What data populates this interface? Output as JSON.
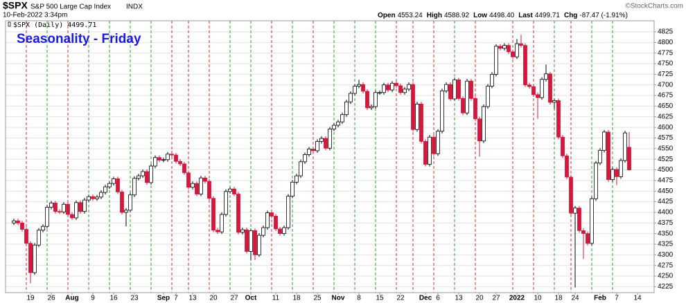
{
  "chart_data": {
    "type": "candlestick",
    "title": "$SPX",
    "subtitle": "S&P 500 Large Cap Index",
    "exchange": "INDX",
    "date": "10-Feb-2022 3:34pm",
    "quote": [
      {
        "label": "Open",
        "value": "4553.24"
      },
      {
        "label": "High",
        "value": "4588.92"
      },
      {
        "label": "Low",
        "value": "4498.40"
      },
      {
        "label": "Last",
        "value": "4499.71"
      },
      {
        "label": "Chg",
        "value": "-87.47 (-1.91%)"
      }
    ],
    "credit": "©StockCharts.com",
    "annotation": "Seasonality - Friday",
    "grid": true,
    "up_color": "#000000",
    "down_color": "#d8163c",
    "friday_up_color": "#2e9b2e",
    "friday_down_color": "#d42a2a",
    "ylim": [
      4211,
      4851
    ],
    "yticks": [
      4225,
      4250,
      4275,
      4300,
      4325,
      4350,
      4375,
      4400,
      4425,
      4450,
      4475,
      4500,
      4525,
      4550,
      4575,
      4600,
      4625,
      4650,
      4675,
      4700,
      4725,
      4750,
      4775,
      4800,
      4825
    ],
    "categories": [
      null,
      null,
      null,
      null,
      "19",
      null,
      null,
      null,
      null,
      "26",
      null,
      null,
      null,
      null,
      "Aug",
      null,
      null,
      null,
      null,
      "9",
      null,
      null,
      null,
      null,
      "16",
      null,
      null,
      null,
      null,
      "23",
      null,
      null,
      null,
      null,
      null,
      null,
      "Sep",
      null,
      null,
      "7",
      null,
      null,
      null,
      "13",
      null,
      null,
      null,
      null,
      "20",
      null,
      null,
      null,
      null,
      "27",
      null,
      null,
      null,
      "Oct",
      null,
      null,
      null,
      null,
      null,
      "11",
      null,
      null,
      null,
      null,
      "18",
      null,
      null,
      null,
      null,
      "25",
      null,
      null,
      null,
      null,
      "Nov",
      null,
      null,
      null,
      null,
      "8",
      null,
      null,
      null,
      null,
      "15",
      null,
      null,
      null,
      null,
      "22",
      null,
      null,
      null,
      null,
      null,
      "Dec",
      null,
      null,
      "6",
      null,
      null,
      null,
      null,
      "13",
      null,
      null,
      null,
      null,
      "20",
      null,
      null,
      null,
      "27",
      null,
      null,
      null,
      null,
      "2022",
      null,
      null,
      null,
      null,
      "10",
      null,
      null,
      null,
      null,
      "18",
      null,
      null,
      null,
      "24",
      null,
      null,
      null,
      null,
      null,
      "Feb",
      null,
      null,
      null,
      "7",
      null,
      null,
      null,
      null,
      "14"
    ],
    "series": [
      {
        "name": "$SPX (Daily) 4499.71",
        "open": [
          4375,
          4380,
          4375,
          4360,
          4327,
          4258,
          4323,
          4358,
          4367,
          4412,
          4422,
          4402,
          4401,
          4419,
          4395,
          4387,
          4423,
          4402,
          4429,
          4437,
          4432,
          4436,
          4447,
          4460,
          4468,
          4479,
          4448,
          4400,
          4405,
          4441,
          4480,
          4486,
          4496,
          4470,
          4509,
          4529,
          4523,
          4524,
          4537,
          4535,
          4520,
          4514,
          4493,
          4459,
          4468,
          4443,
          4481,
          4473,
          4433,
          4358,
          4354,
          4395,
          4449,
          4455,
          4443,
          4353,
          4359,
          4308,
          4357,
          4300,
          4346,
          4364,
          4399,
          4391,
          4361,
          4350,
          4364,
          4438,
          4471,
          4486,
          4519,
          4536,
          4549,
          4545,
          4567,
          4574,
          4551,
          4596,
          4605,
          4613,
          4630,
          4660,
          4680,
          4697,
          4701,
          4685,
          4646,
          4649,
          4682,
          4682,
          4700,
          4688,
          4704,
          4698,
          4682,
          4690,
          4701,
          4595,
          4655,
          4567,
          4513,
          4577,
          4538,
          4591,
          4686,
          4701,
          4667,
          4712,
          4668,
          4634,
          4709,
          4668,
          4620,
          4568,
          4649,
          4697,
          4725,
          4791,
          4786,
          4793,
          4778,
          4766,
          4797,
          4793,
          4700,
          4696,
          4677,
          4670,
          4713,
          4726,
          4659,
          4663,
          4577,
          4533,
          4483,
          4398,
          4410,
          4357,
          4350,
          4327,
          4432,
          4516,
          4546,
          4589,
          4477,
          4501,
          4484,
          4522,
          4553.24,
          null,
          null
        ],
        "high": [
          4385,
          4385,
          4380,
          4365,
          4332,
          4328,
          4363,
          4372,
          4417,
          4427,
          4427,
          4407,
          4424,
          4424,
          4400,
          4428,
          4428,
          4434,
          4442,
          4442,
          4441,
          4452,
          4465,
          4473,
          4484,
          4484,
          4453,
          4410,
          4446,
          4485,
          4491,
          4501,
          4501,
          4514,
          4534,
          4534,
          4529,
          4542,
          4545,
          4540,
          4525,
          4519,
          4498,
          4473,
          4473,
          4486,
          4486,
          4478,
          4438,
          4363,
          4400,
          4454,
          4460,
          4460,
          4448,
          4364,
          4364,
          4362,
          4362,
          4351,
          4369,
          4404,
          4404,
          4396,
          4366,
          4369,
          4443,
          4476,
          4491,
          4524,
          4541,
          4554,
          4554,
          4572,
          4579,
          4579,
          4601,
          4610,
          4618,
          4635,
          4665,
          4685,
          4702,
          4712,
          4706,
          4690,
          4654,
          4687,
          4687,
          4705,
          4705,
          4709,
          4709,
          4703,
          4695,
          4706,
          4706,
          4660,
          4660,
          4572,
          4582,
          4582,
          4596,
          4691,
          4706,
          4706,
          4717,
          4717,
          4673,
          4714,
          4714,
          4673,
          4625,
          4654,
          4702,
          4730,
          4796,
          4796,
          4798,
          4798,
          4783,
          4808,
          4818,
          4798,
          4705,
          4701,
          4682,
          4718,
          4748,
          4731,
          4668,
          4668,
          4582,
          4538,
          4488,
          4415,
          4415,
          4362,
          4355,
          4437,
          4521,
          4551,
          4594,
          4594,
          4506,
          4506,
          4527,
          4592,
          4588.92,
          null,
          null
        ],
        "low": [
          4370,
          4370,
          4355,
          4322,
          4233,
          4253,
          4318,
          4353,
          4362,
          4407,
          4397,
          4396,
          4396,
          4390,
          4382,
          4382,
          4397,
          4397,
          4424,
          4427,
          4427,
          4431,
          4442,
          4455,
          4463,
          4443,
          4395,
          4367,
          4400,
          4436,
          4475,
          4481,
          4465,
          4465,
          4504,
          4518,
          4518,
          4519,
          4530,
          4515,
          4509,
          4488,
          4454,
          4454,
          4438,
          4438,
          4468,
          4428,
          4353,
          4349,
          4349,
          4390,
          4444,
          4438,
          4348,
          4348,
          4303,
          4288,
          4288,
          4295,
          4341,
          4359,
          4386,
          4356,
          4345,
          4345,
          4359,
          4433,
          4466,
          4481,
          4514,
          4531,
          4540,
          4540,
          4562,
          4546,
          4546,
          4591,
          4600,
          4608,
          4625,
          4655,
          4675,
          4692,
          4680,
          4641,
          4641,
          4644,
          4677,
          4677,
          4683,
          4683,
          4693,
          4677,
          4677,
          4685,
          4590,
          4590,
          4562,
          4508,
          4508,
          4533,
          4533,
          4586,
          4681,
          4662,
          4662,
          4663,
          4629,
          4629,
          4663,
          4615,
          4531,
          4563,
          4644,
          4692,
          4720,
          4781,
          4781,
          4773,
          4761,
          4761,
          4788,
          4695,
          4691,
          4672,
          4620,
          4665,
          4708,
          4654,
          4643,
          4572,
          4528,
          4478,
          4393,
          4223,
          4352,
          4290,
          4322,
          4322,
          4427,
          4511,
          4541,
          4472,
          4472,
          4464,
          4479,
          4517,
          4498.4,
          null,
          null
        ],
        "close": [
          4380,
          4375,
          4360,
          4327,
          4258,
          4323,
          4358,
          4367,
          4412,
          4422,
          4402,
          4401,
          4419,
          4395,
          4387,
          4423,
          4402,
          4429,
          4437,
          4432,
          4436,
          4447,
          4460,
          4468,
          4479,
          4448,
          4400,
          4405,
          4441,
          4480,
          4486,
          4496,
          4470,
          4509,
          4529,
          4523,
          4524,
          4537,
          4535,
          4520,
          4514,
          4493,
          4459,
          4468,
          4443,
          4481,
          4473,
          4433,
          4358,
          4354,
          4395,
          4449,
          4455,
          4443,
          4353,
          4359,
          4308,
          4357,
          4300,
          4346,
          4364,
          4399,
          4391,
          4361,
          4350,
          4364,
          4438,
          4471,
          4486,
          4519,
          4536,
          4549,
          4545,
          4567,
          4574,
          4551,
          4596,
          4605,
          4613,
          4630,
          4660,
          4680,
          4697,
          4701,
          4685,
          4646,
          4649,
          4682,
          4682,
          4700,
          4688,
          4704,
          4698,
          4682,
          4690,
          4701,
          4595,
          4655,
          4567,
          4513,
          4577,
          4538,
          4591,
          4686,
          4701,
          4667,
          4712,
          4668,
          4634,
          4709,
          4668,
          4620,
          4568,
          4649,
          4697,
          4725,
          4791,
          4786,
          4793,
          4778,
          4766,
          4797,
          4793,
          4700,
          4696,
          4677,
          4670,
          4713,
          4726,
          4659,
          4663,
          4577,
          4533,
          4483,
          4398,
          4410,
          4357,
          4350,
          4327,
          4432,
          4516,
          4546,
          4589,
          4477,
          4501,
          4484,
          4522,
          4587,
          4499.71,
          null,
          null
        ]
      }
    ]
  }
}
